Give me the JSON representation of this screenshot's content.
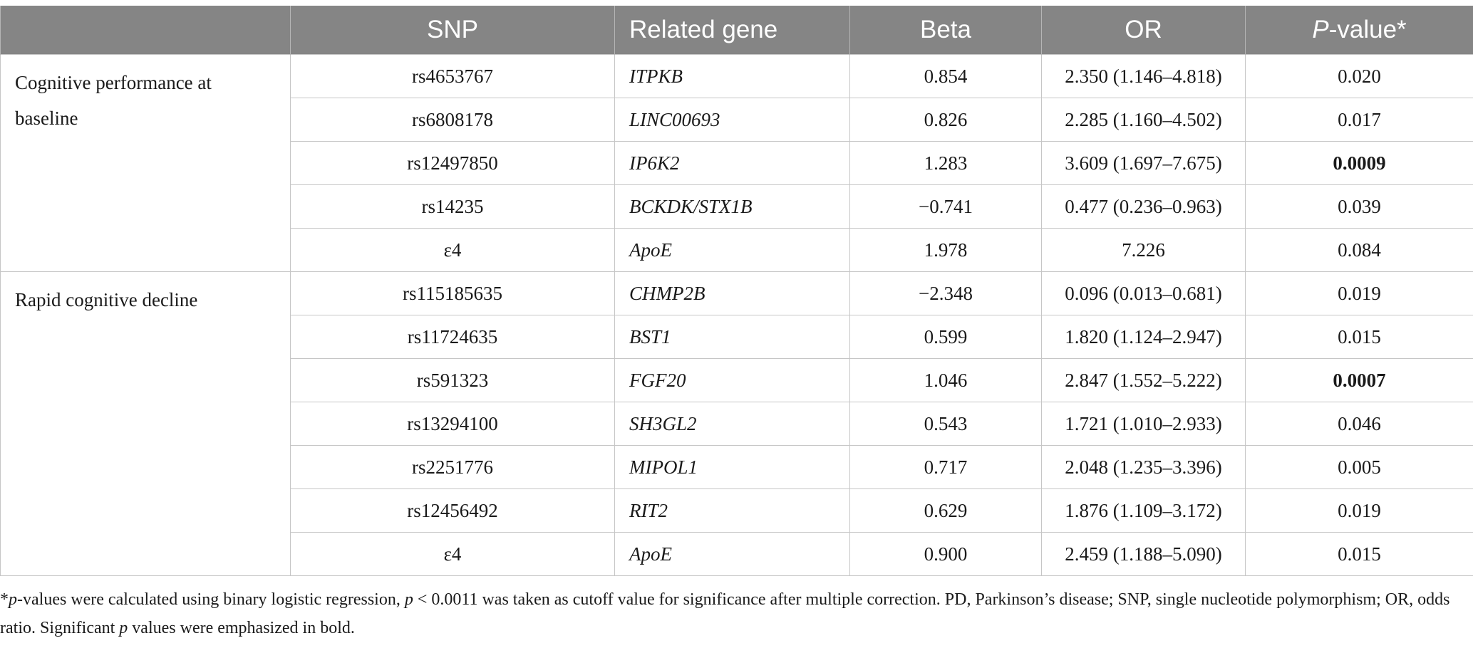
{
  "table": {
    "headers": {
      "group": "",
      "snp": "SNP",
      "related_gene": "Related gene",
      "beta": "Beta",
      "or": "OR",
      "p_value_italic": "P",
      "p_value_rest": "-value*"
    },
    "groups": [
      {
        "label": "Cognitive performance at baseline",
        "rows": [
          {
            "snp": "rs4653767",
            "gene": "ITPKB",
            "beta": "0.854",
            "or": "2.350 (1.146–4.818)",
            "p": "0.020",
            "p_bold": false
          },
          {
            "snp": "rs6808178",
            "gene": "LINC00693",
            "beta": "0.826",
            "or": "2.285 (1.160–4.502)",
            "p": "0.017",
            "p_bold": false
          },
          {
            "snp": "rs12497850",
            "gene": "IP6K2",
            "beta": "1.283",
            "or": "3.609 (1.697–7.675)",
            "p": "0.0009",
            "p_bold": true
          },
          {
            "snp": "rs14235",
            "gene": "BCKDK/STX1B",
            "beta": "−0.741",
            "or": "0.477 (0.236–0.963)",
            "p": "0.039",
            "p_bold": false
          },
          {
            "snp": "ε4",
            "gene": "ApoE",
            "beta": "1.978",
            "or": "7.226",
            "p": "0.084",
            "p_bold": false
          }
        ]
      },
      {
        "label": "Rapid cognitive decline",
        "rows": [
          {
            "snp": "rs115185635",
            "gene": "CHMP2B",
            "beta": "−2.348",
            "or": "0.096 (0.013–0.681)",
            "p": "0.019",
            "p_bold": false
          },
          {
            "snp": "rs11724635",
            "gene": "BST1",
            "beta": "0.599",
            "or": "1.820 (1.124–2.947)",
            "p": "0.015",
            "p_bold": false
          },
          {
            "snp": "rs591323",
            "gene": "FGF20",
            "beta": "1.046",
            "or": "2.847 (1.552–5.222)",
            "p": "0.0007",
            "p_bold": true
          },
          {
            "snp": "rs13294100",
            "gene": "SH3GL2",
            "beta": "0.543",
            "or": "1.721 (1.010–2.933)",
            "p": "0.046",
            "p_bold": false
          },
          {
            "snp": "rs2251776",
            "gene": "MIPOL1",
            "beta": "0.717",
            "or": "2.048 (1.235–3.396)",
            "p": "0.005",
            "p_bold": false
          },
          {
            "snp": "rs12456492",
            "gene": "RIT2",
            "beta": "0.629",
            "or": "1.876 (1.109–3.172)",
            "p": "0.019",
            "p_bold": false
          },
          {
            "snp": "ε4",
            "gene": "ApoE",
            "beta": "0.900",
            "or": "2.459 (1.188–5.090)",
            "p": "0.015",
            "p_bold": false
          }
        ]
      }
    ]
  },
  "footnote": {
    "star": "*",
    "p1": "p",
    "t1": "-values were calculated using binary logistic regression, ",
    "p2": "p",
    "t2": " < 0.0011 was taken as cutoff value for significance after multiple correction. PD, Parkinson’s disease; SNP, single nucleotide polymorphism; OR, odds ratio. Significant ",
    "p3": "p",
    "t3": " values were emphasized in bold."
  },
  "colors": {
    "header_bg": "#858585",
    "header_text": "#ffffff",
    "grid": "#c6c6c6"
  }
}
